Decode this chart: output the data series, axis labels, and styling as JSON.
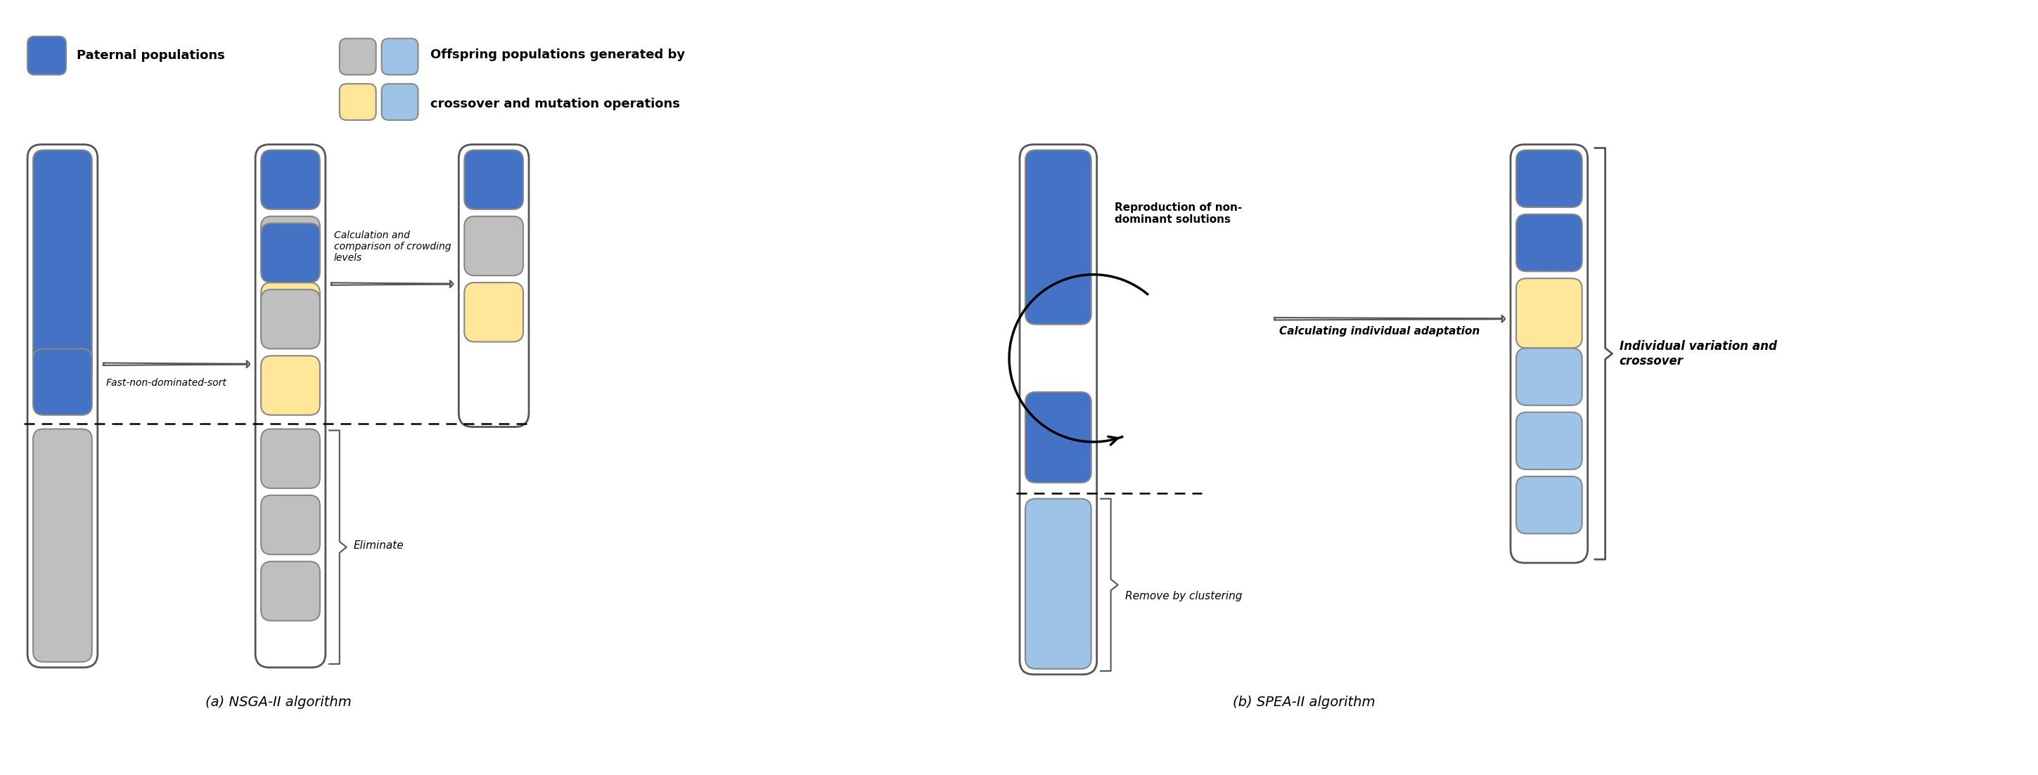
{
  "fig_width": 28.98,
  "fig_height": 11.03,
  "bg_color": "#ffffff",
  "colors": {
    "blue": "#4472C4",
    "light_blue": "#9DC3E6",
    "gray": "#BFBFBF",
    "yellow": "#FFE699",
    "border": "#595959"
  },
  "legend": {
    "blue_label": "Paternal populations",
    "offspring_label_1": "Offspring populations generated by",
    "offspring_label_2": "crossover and mutation operations"
  },
  "nsga2": {
    "title": "(a) NSGA-II algorithm",
    "arrow1_label": "Fast-non-dominated-sort",
    "arrow2_label": "Calculation and\ncomparison of crowding\nlevels",
    "eliminate_label": "Eliminate"
  },
  "spea2": {
    "title": "(b) SPEA-II algorithm",
    "repro_label": "Reproduction of non-\ndominant solutions",
    "calc_label": "Calculating individual adaptation",
    "remove_label": "Remove by clustering",
    "variation_label": "Individual variation and\ncrossover"
  }
}
